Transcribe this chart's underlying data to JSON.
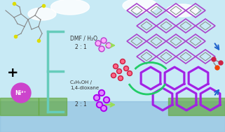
{
  "background_color": "#a8d8e8",
  "sky_color": "#c8eaf5",
  "grass_color": "#66aa44",
  "water_color": "#88bbdd",
  "cloud_color": "#ffffff",
  "ligand_color": "#888888",
  "ni_color": "#cc44cc",
  "ni_text": "Ni²⁺",
  "plus_symbol": "+",
  "bracket_color": "#66ccbb",
  "top_label": "DMF / H₂O",
  "top_ratio": "2 : 1",
  "bottom_label": "C₂H₅OH /\n1,4-dioxane",
  "bottom_ratio": "2 : 1",
  "arrow_color": "#99dd55",
  "green_curve_color": "#22cc66",
  "blue_arrow_color": "#2266cc",
  "top_framework_color": "#aa44cc",
  "bottom_framework_color": "#aa00ff",
  "dot_color_dark": "#cc2244",
  "dot_color_light": "#ff6688",
  "cluster_top_dark": "#bb44cc",
  "cluster_top_light": "#ffaaff",
  "cluster_bot_dark": "#aa00ee",
  "cluster_bot_light": "#dd88ff",
  "gray_line_color": "#888888"
}
